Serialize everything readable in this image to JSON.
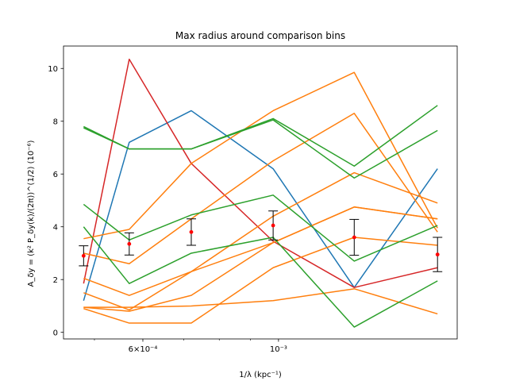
{
  "chart_data": {
    "type": "line",
    "title": "Max radius around comparison bins",
    "xlabel": "1/λ (kpc⁻¹)",
    "ylabel": "A_δy = (k² P_δy(k)/(2π))^(1/2) (10⁻⁶)",
    "x_scale": "log",
    "xlim": [
      0.000445,
      0.00196
    ],
    "ylim": [
      -0.25,
      10.85
    ],
    "x": [
      0.00048,
      0.00057,
      0.00072,
      0.00098,
      0.00133,
      0.00182
    ],
    "x_ticks": [
      {
        "value": 0.0006,
        "label": "6×10⁻⁴"
      },
      {
        "value": 0.001,
        "label": "10⁻³"
      }
    ],
    "x_minor_ticks": [
      0.0005,
      0.0007,
      0.0008,
      0.0009,
      0.002
    ],
    "y_ticks": [
      0,
      2,
      4,
      6,
      8,
      10
    ],
    "grid": false,
    "series": [
      {
        "color": "#1f77b4",
        "values": [
          1.2,
          7.2,
          8.4,
          6.2,
          1.7,
          6.2
        ]
      },
      {
        "color": "#d62728",
        "values": [
          1.85,
          10.35,
          6.4,
          3.45,
          1.7,
          2.45
        ]
      },
      {
        "color": "#ff7f0e",
        "values": [
          0.95,
          0.8,
          1.4,
          3.4,
          4.75,
          4.3
        ]
      },
      {
        "color": "#ff7f0e",
        "values": [
          0.9,
          0.35,
          0.35,
          2.45,
          3.6,
          3.3
        ]
      },
      {
        "color": "#ff7f0e",
        "values": [
          0.95,
          0.95,
          1.0,
          1.2,
          1.65,
          0.7
        ]
      },
      {
        "color": "#ff7f0e",
        "values": [
          1.5,
          0.85,
          2.3,
          4.4,
          6.05,
          4.9
        ]
      },
      {
        "color": "#ff7f0e",
        "values": [
          2.05,
          1.4,
          2.3,
          3.4,
          4.75,
          4.3
        ]
      },
      {
        "color": "#ff7f0e",
        "values": [
          3.55,
          3.9,
          6.4,
          8.4,
          9.85,
          3.95
        ]
      },
      {
        "color": "#ff7f0e",
        "values": [
          3.0,
          2.6,
          4.3,
          6.5,
          8.3,
          3.8
        ]
      },
      {
        "color": "#2ca02c",
        "values": [
          7.75,
          6.95,
          6.95,
          8.1,
          6.3,
          8.6
        ]
      },
      {
        "color": "#2ca02c",
        "values": [
          7.8,
          6.95,
          6.95,
          8.05,
          5.85,
          7.65
        ]
      },
      {
        "color": "#2ca02c",
        "values": [
          4.85,
          3.5,
          4.45,
          5.2,
          2.7,
          4.05
        ]
      },
      {
        "color": "#2ca02c",
        "values": [
          4.0,
          1.85,
          3.0,
          3.6,
          0.2,
          1.95
        ]
      }
    ],
    "mean_points": {
      "color": "#ff0000",
      "values": [
        2.9,
        3.35,
        3.8,
        4.05,
        3.6,
        2.95
      ],
      "err": [
        0.38,
        0.42,
        0.5,
        0.55,
        0.68,
        0.65
      ]
    }
  }
}
